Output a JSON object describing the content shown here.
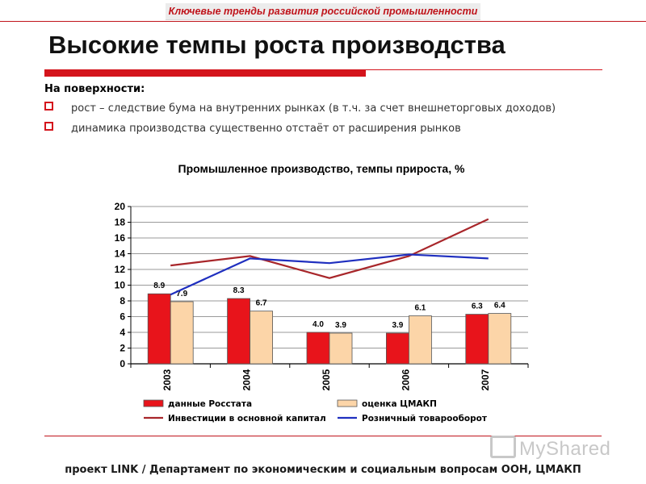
{
  "header": {
    "banner_text": "Ключевые тренды развития российской промышленности"
  },
  "slide": {
    "title": "Высокие темпы роста производства",
    "surface_label": "На поверхности:",
    "bullets": [
      "рост – следствие бума на внутренних рынках (в т.ч. за счет внешнеторговых доходов)",
      "динамика производства существенно отстаёт от расширения рынков"
    ]
  },
  "footer": {
    "text": "проект LINK / Департамент по экономическим и социальным вопросам ООН, ЦМАКП"
  },
  "watermark": {
    "text": "MyShared"
  },
  "colors": {
    "accent": "#d4141c",
    "bar_rosstat": "#e8141b",
    "bar_cmakp": "#fcd5a8",
    "line_invest": "#a8262a",
    "line_retail": "#1f2fbf"
  },
  "chart_data": {
    "type": "bar",
    "title": "Промышленное производство, темпы прироста, %",
    "categories": [
      "2003",
      "2004",
      "2005",
      "2006",
      "2007"
    ],
    "ylim": [
      0,
      20
    ],
    "yticks": [
      0,
      2,
      4,
      6,
      8,
      10,
      12,
      14,
      16,
      18,
      20
    ],
    "grid": true,
    "legend_position": "bottom",
    "series": [
      {
        "name": "данные Росстата",
        "kind": "bar",
        "values": [
          8.9,
          8.3,
          4.0,
          3.9,
          6.3
        ],
        "labels": [
          "8.9",
          "8.3",
          "4.0",
          "3.9",
          "6.3"
        ]
      },
      {
        "name": "оценка ЦМАКП",
        "kind": "bar",
        "values": [
          7.9,
          6.7,
          3.9,
          6.1,
          6.4
        ],
        "labels": [
          "7.9",
          "6.7",
          "3.9",
          "6.1",
          "6.4"
        ]
      },
      {
        "name": "Инвестиции в основной капитал",
        "kind": "line",
        "values": [
          12.5,
          13.7,
          10.9,
          13.7,
          18.4
        ]
      },
      {
        "name": "Розничный товарооборот",
        "kind": "line",
        "values": [
          8.8,
          13.4,
          12.8,
          13.9,
          13.4
        ]
      }
    ]
  }
}
